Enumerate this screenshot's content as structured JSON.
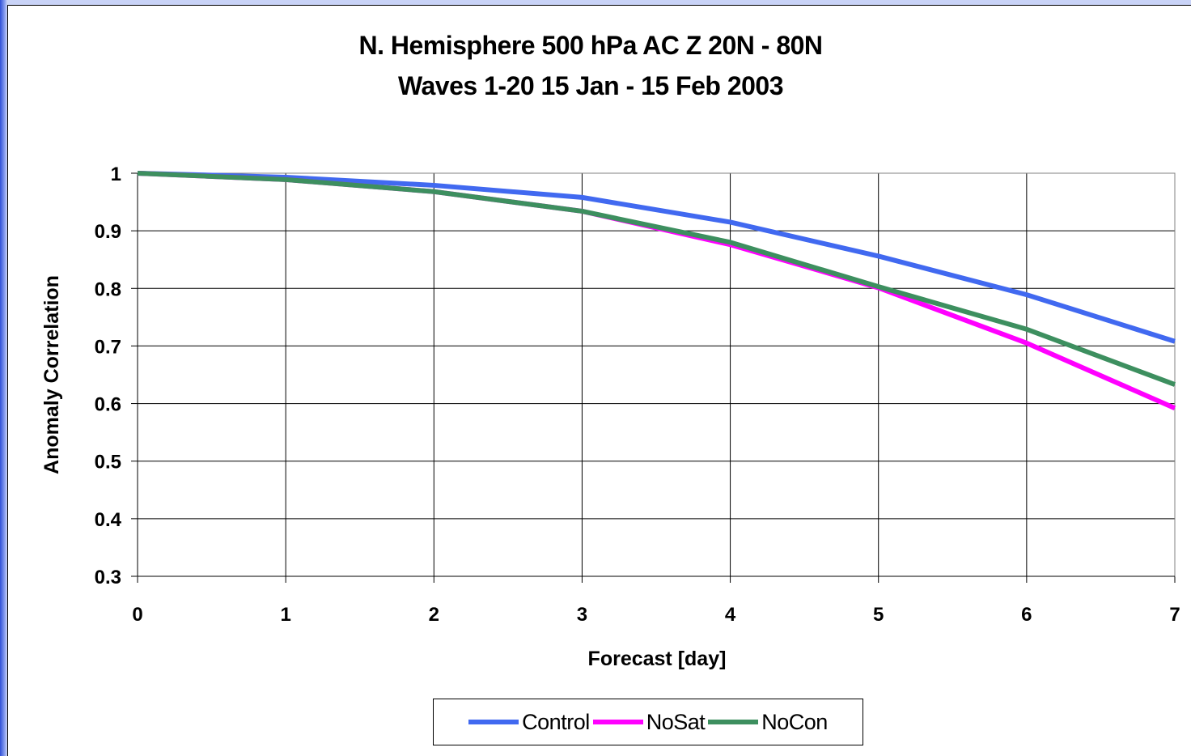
{
  "chart_data": {
    "type": "line",
    "title": "N. Hemisphere 500 hPa AC Z  20N - 80N",
    "subtitle": "Waves 1-20  15 Jan - 15 Feb 2003",
    "xlabel": "Forecast [day]",
    "ylabel": "Anomaly Correlation",
    "x": [
      0,
      1,
      2,
      3,
      4,
      5,
      6,
      7
    ],
    "x_ticks": [
      "0",
      "1",
      "2",
      "3",
      "4",
      "5",
      "6",
      "7"
    ],
    "y_ticks": [
      "0.3",
      "0.4",
      "0.5",
      "0.6",
      "0.7",
      "0.8",
      "0.9",
      "1"
    ],
    "xlim": [
      0,
      7
    ],
    "ylim": [
      0.3,
      1
    ],
    "grid": true,
    "legend_position": "bottom",
    "series": [
      {
        "name": "Control",
        "color": "#4169f0",
        "values": [
          1.0,
          0.993,
          0.979,
          0.958,
          0.915,
          0.856,
          0.789,
          0.708
        ]
      },
      {
        "name": "NoSat",
        "color": "#ff00ff",
        "values": [
          1.0,
          0.989,
          0.968,
          0.934,
          0.876,
          0.801,
          0.705,
          0.592
        ]
      },
      {
        "name": "NoCon",
        "color": "#3d8f5f",
        "values": [
          1.0,
          0.989,
          0.968,
          0.934,
          0.88,
          0.803,
          0.729,
          0.633
        ]
      }
    ]
  }
}
